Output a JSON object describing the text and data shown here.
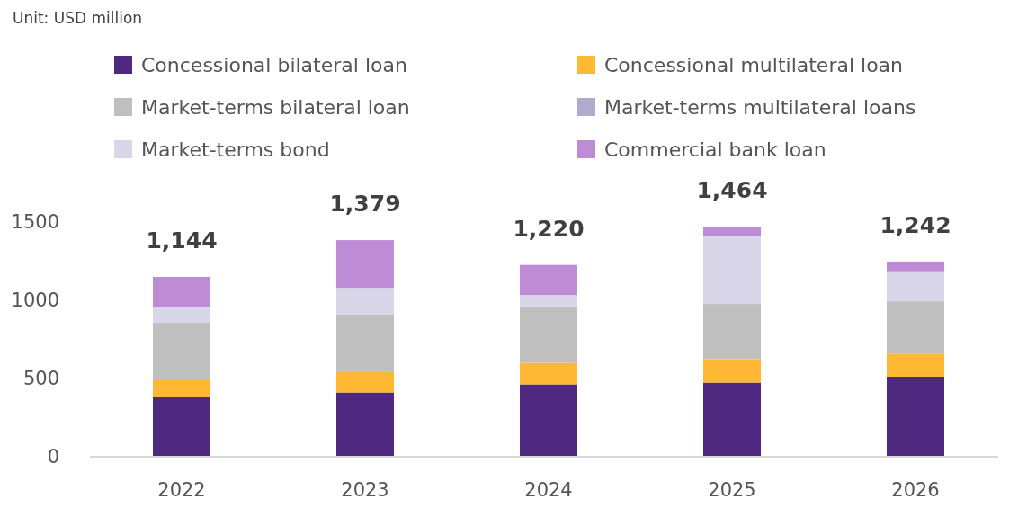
{
  "chart_data": {
    "type": "bar",
    "stacked": true,
    "annotations": [
      "Unit: USD million"
    ],
    "categories": [
      "2022",
      "2023",
      "2024",
      "2025",
      "2026"
    ],
    "series": [
      {
        "name": "Concessional bilateral loan",
        "color": "#4f2980",
        "values": [
          376,
          405,
          457,
          468,
          506
        ]
      },
      {
        "name": "Concessional multilateral loan",
        "color": "#ffb833",
        "values": [
          117,
          130,
          138,
          150,
          148
        ]
      },
      {
        "name": "Market-terms bilateral loan",
        "color": "#bfbfbf",
        "values": [
          357,
          368,
          360,
          353,
          334
        ]
      },
      {
        "name": "Market-terms multilateral loans",
        "color": "#aeaad0",
        "values": [
          0,
          0,
          0,
          0,
          0
        ]
      },
      {
        "name": "Market-terms bond",
        "color": "#dad6ea",
        "values": [
          102,
          171,
          73,
          431,
          192
        ]
      },
      {
        "name": "Commercial bank loan",
        "color": "#bd8cd4",
        "values": [
          192,
          305,
          192,
          62,
          62
        ]
      }
    ],
    "totals": [
      "1,144",
      "1,379",
      "1,220",
      "1,464",
      "1,242"
    ],
    "ylim": [
      0,
      1500
    ],
    "yticks": [
      0,
      500,
      1000,
      1500
    ],
    "grid": false,
    "legend": "top"
  }
}
